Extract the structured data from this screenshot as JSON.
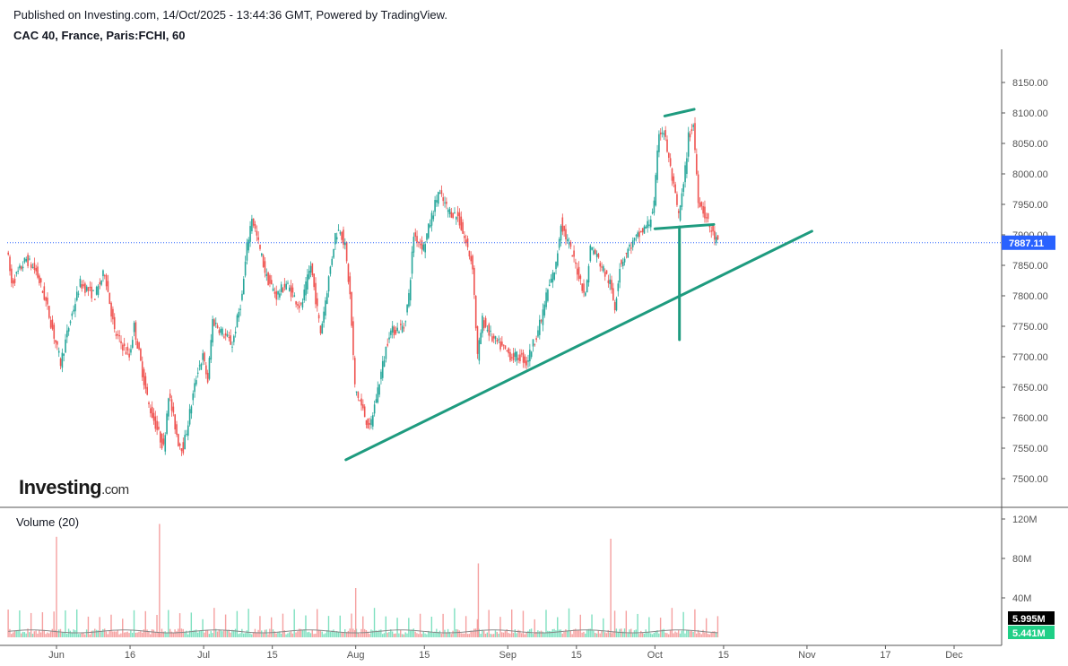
{
  "header": {
    "published": "Published on Investing.com, 14/Oct/2025 - 13:44:36 GMT, Powered by TradingView.",
    "title": "CAC 40, France, Paris:FCHI, 60"
  },
  "logo": {
    "main": "Investing",
    "suffix": ".com"
  },
  "volume": {
    "label": "Volume (20)",
    "axis": [
      "120M",
      "80M",
      "40M"
    ],
    "axis_values": [
      120,
      80,
      40
    ],
    "last_volume": "5.995M",
    "ma_volume": "5.441M"
  },
  "colors": {
    "up": "#26a69a",
    "down": "#ef5350",
    "drawing": "#1e9b7f",
    "last_price": "#2962ff",
    "vol_up": "#7fe0c0",
    "vol_down": "#f5a0a0"
  },
  "chart_data": {
    "type": "candlestick",
    "symbol": "CAC 40, France, Paris:FCHI, 60",
    "last_price": 7887.11,
    "last_price_label": "7887.11",
    "ylim": [
      7450,
      8200
    ],
    "y_ticks": [
      "8150.00",
      "8100.00",
      "8050.00",
      "8000.00",
      "7950.00",
      "7900.00",
      "7850.00",
      "7800.00",
      "7750.00",
      "7700.00",
      "7650.00",
      "7600.00",
      "7550.00",
      "7500.00"
    ],
    "y_tick_values": [
      8150,
      8100,
      8050,
      8000,
      7950,
      7900,
      7850,
      7800,
      7750,
      7700,
      7650,
      7600,
      7550,
      7500
    ],
    "x_ticks": [
      {
        "label": "Jun",
        "date": "2025-06-01"
      },
      {
        "label": "16",
        "date": "2025-06-16"
      },
      {
        "label": "Jul",
        "date": "2025-07-01"
      },
      {
        "label": "15",
        "date": "2025-07-15"
      },
      {
        "label": "Aug",
        "date": "2025-08-01"
      },
      {
        "label": "15",
        "date": "2025-08-15"
      },
      {
        "label": "Sep",
        "date": "2025-09-01"
      },
      {
        "label": "15",
        "date": "2025-09-15"
      },
      {
        "label": "Oct",
        "date": "2025-10-01"
      },
      {
        "label": "15",
        "date": "2025-10-15"
      },
      {
        "label": "Nov",
        "date": "2025-11-01"
      },
      {
        "label": "17",
        "date": "2025-11-17"
      },
      {
        "label": "Dec",
        "date": "2025-12-01"
      }
    ],
    "price_path": [
      [
        "2025-05-22",
        7880
      ],
      [
        "2025-05-23",
        7820
      ],
      [
        "2025-05-26",
        7860
      ],
      [
        "2025-05-28",
        7840
      ],
      [
        "2025-05-30",
        7790
      ],
      [
        "2025-06-02",
        7690
      ],
      [
        "2025-06-04",
        7760
      ],
      [
        "2025-06-06",
        7820
      ],
      [
        "2025-06-09",
        7800
      ],
      [
        "2025-06-11",
        7840
      ],
      [
        "2025-06-13",
        7740
      ],
      [
        "2025-06-16",
        7700
      ],
      [
        "2025-06-17",
        7750
      ],
      [
        "2025-06-19",
        7660
      ],
      [
        "2025-06-20",
        7620
      ],
      [
        "2025-06-23",
        7550
      ],
      [
        "2025-06-24",
        7640
      ],
      [
        "2025-06-26",
        7560
      ],
      [
        "2025-06-27",
        7550
      ],
      [
        "2025-06-30",
        7680
      ],
      [
        "2025-07-01",
        7700
      ],
      [
        "2025-07-02",
        7660
      ],
      [
        "2025-07-03",
        7760
      ],
      [
        "2025-07-07",
        7720
      ],
      [
        "2025-07-09",
        7800
      ],
      [
        "2025-07-10",
        7880
      ],
      [
        "2025-07-11",
        7930
      ],
      [
        "2025-07-14",
        7830
      ],
      [
        "2025-07-16",
        7800
      ],
      [
        "2025-07-18",
        7820
      ],
      [
        "2025-07-21",
        7780
      ],
      [
        "2025-07-23",
        7850
      ],
      [
        "2025-07-25",
        7740
      ],
      [
        "2025-07-28",
        7900
      ],
      [
        "2025-07-29",
        7910
      ],
      [
        "2025-07-30",
        7880
      ],
      [
        "2025-07-31",
        7800
      ],
      [
        "2025-08-01",
        7650
      ],
      [
        "2025-08-04",
        7580
      ],
      [
        "2025-08-05",
        7620
      ],
      [
        "2025-08-07",
        7700
      ],
      [
        "2025-08-08",
        7740
      ],
      [
        "2025-08-11",
        7750
      ],
      [
        "2025-08-12",
        7800
      ],
      [
        "2025-08-13",
        7900
      ],
      [
        "2025-08-15",
        7880
      ],
      [
        "2025-08-18",
        7970
      ],
      [
        "2025-08-20",
        7940
      ],
      [
        "2025-08-22",
        7930
      ],
      [
        "2025-08-25",
        7850
      ],
      [
        "2025-08-26",
        7700
      ],
      [
        "2025-08-27",
        7760
      ],
      [
        "2025-08-29",
        7730
      ],
      [
        "2025-09-02",
        7700
      ],
      [
        "2025-09-04",
        7700
      ],
      [
        "2025-09-05",
        7690
      ],
      [
        "2025-09-08",
        7760
      ],
      [
        "2025-09-09",
        7800
      ],
      [
        "2025-09-11",
        7850
      ],
      [
        "2025-09-12",
        7920
      ],
      [
        "2025-09-15",
        7850
      ],
      [
        "2025-09-17",
        7800
      ],
      [
        "2025-09-18",
        7880
      ],
      [
        "2025-09-19",
        7870
      ],
      [
        "2025-09-22",
        7820
      ],
      [
        "2025-09-23",
        7780
      ],
      [
        "2025-09-24",
        7850
      ],
      [
        "2025-09-26",
        7880
      ],
      [
        "2025-09-30",
        7920
      ],
      [
        "2025-10-01",
        7950
      ],
      [
        "2025-10-02",
        8070
      ],
      [
        "2025-10-03",
        8070
      ],
      [
        "2025-10-06",
        7930
      ],
      [
        "2025-10-07",
        7980
      ],
      [
        "2025-10-08",
        8060
      ],
      [
        "2025-10-09",
        8080
      ],
      [
        "2025-10-10",
        7960
      ],
      [
        "2025-10-13",
        7900
      ],
      [
        "2025-10-14",
        7887
      ]
    ],
    "volume_spikes": [
      [
        "2025-06-01",
        102
      ],
      [
        "2025-06-22",
        115
      ],
      [
        "2025-08-01",
        50
      ],
      [
        "2025-08-26",
        75
      ],
      [
        "2025-09-22",
        100
      ]
    ],
    "drawings": [
      {
        "name": "trendline",
        "points": [
          [
            "2025-07-30",
            7531
          ],
          [
            "2025-11-02",
            7906
          ]
        ]
      },
      {
        "name": "neckline",
        "points": [
          [
            "2025-10-01",
            7910
          ],
          [
            "2025-10-13",
            7917
          ]
        ]
      },
      {
        "name": "top-line",
        "points": [
          [
            "2025-10-03",
            8095
          ],
          [
            "2025-10-09",
            8106
          ]
        ]
      },
      {
        "name": "target-line",
        "points": [
          [
            "2025-10-06",
            7913
          ],
          [
            "2025-10-06",
            7728
          ]
        ]
      }
    ]
  }
}
